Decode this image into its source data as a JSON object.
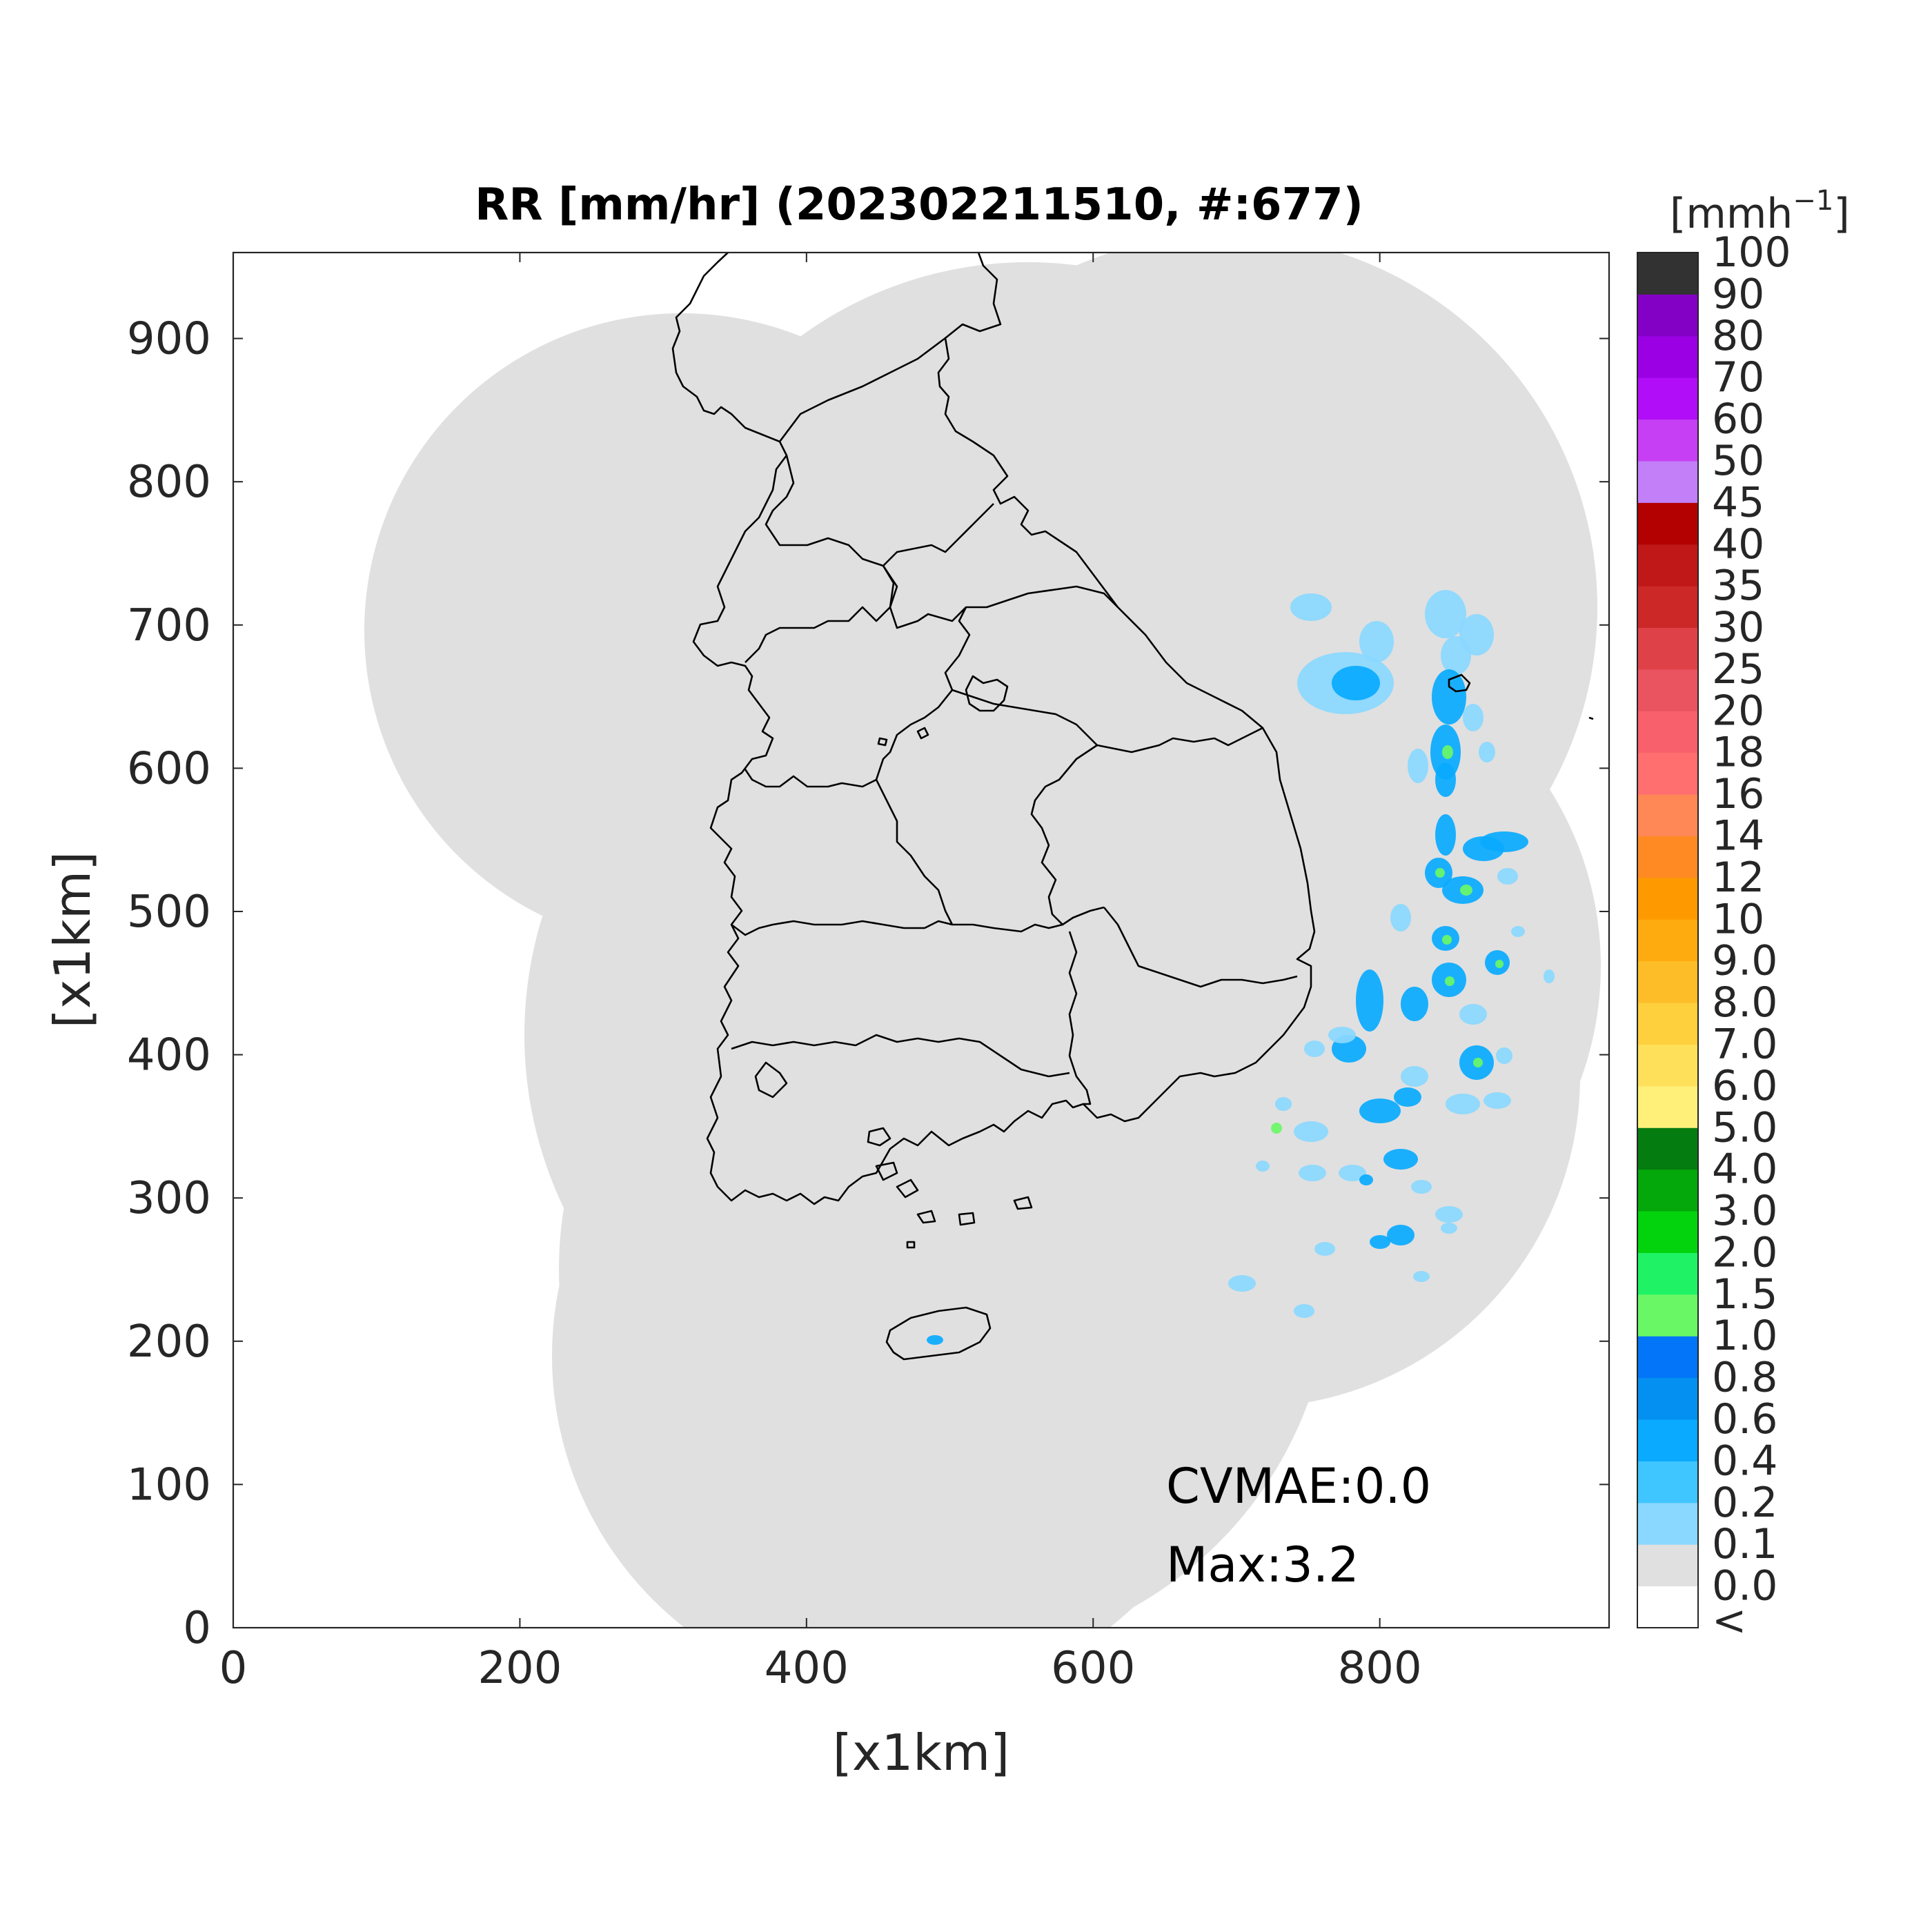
{
  "title": "RR [mm/hr] (202302211510, #:677)",
  "x_axis": {
    "label": "[x1km]",
    "ticks": [
      0,
      200,
      400,
      600,
      800
    ],
    "range": [
      0,
      960
    ]
  },
  "y_axis": {
    "label": "[x1km]",
    "ticks": [
      0,
      100,
      200,
      300,
      400,
      500,
      600,
      700,
      800,
      900
    ],
    "range": [
      0,
      960
    ]
  },
  "annotations": {
    "cvmae": "CVMAE:0.0",
    "max": "Max:3.2"
  },
  "colorbar": {
    "unit_label": "[mmh",
    "unit_exponent": "−1",
    "unit_close": "]",
    "levels": [
      {
        "label": "<",
        "color": "#ffffff"
      },
      {
        "label": "0.0",
        "color": "#e0e0e0"
      },
      {
        "label": "0.1",
        "color": "#8ad8ff"
      },
      {
        "label": "0.2",
        "color": "#3fc5ff"
      },
      {
        "label": "0.4",
        "color": "#09aaff"
      },
      {
        "label": "0.6",
        "color": "#0390f0"
      },
      {
        "label": "0.8",
        "color": "#0375f8"
      },
      {
        "label": "1.0",
        "color": "#6af766"
      },
      {
        "label": "1.5",
        "color": "#1ff365"
      },
      {
        "label": "2.0",
        "color": "#03d30d"
      },
      {
        "label": "3.0",
        "color": "#05a80b"
      },
      {
        "label": "4.0",
        "color": "#057c10"
      },
      {
        "label": "5.0",
        "color": "#fff07a"
      },
      {
        "label": "6.0",
        "color": "#ffe05a"
      },
      {
        "label": "7.0",
        "color": "#fed03e"
      },
      {
        "label": "8.0",
        "color": "#fdbd28"
      },
      {
        "label": "9.0",
        "color": "#feab10"
      },
      {
        "label": "10",
        "color": "#fe9a00"
      },
      {
        "label": "12",
        "color": "#ff8a23"
      },
      {
        "label": "14",
        "color": "#ff8856"
      },
      {
        "label": "16",
        "color": "#ff6f6f"
      },
      {
        "label": "18",
        "color": "#f8616c"
      },
      {
        "label": "20",
        "color": "#ea5460"
      },
      {
        "label": "25",
        "color": "#de4248"
      },
      {
        "label": "30",
        "color": "#cc2828"
      },
      {
        "label": "35",
        "color": "#c01818"
      },
      {
        "label": "40",
        "color": "#b30000"
      },
      {
        "label": "45",
        "color": "#c27ff7"
      },
      {
        "label": "50",
        "color": "#c63ff4"
      },
      {
        "label": "60",
        "color": "#b10df8"
      },
      {
        "label": "70",
        "color": "#9a00e3"
      },
      {
        "label": "80",
        "color": "#8300c5"
      },
      {
        "label": "90",
        "color": "#323232"
      },
      {
        "label": "100",
        "color": ""
      }
    ]
  },
  "colors": {
    "coverage": "#e0e0e0",
    "coast": "#000000",
    "light_rain": "#8ad8ff",
    "moderate_rain": "#09aaff",
    "peak_rain": "#6af766"
  }
}
